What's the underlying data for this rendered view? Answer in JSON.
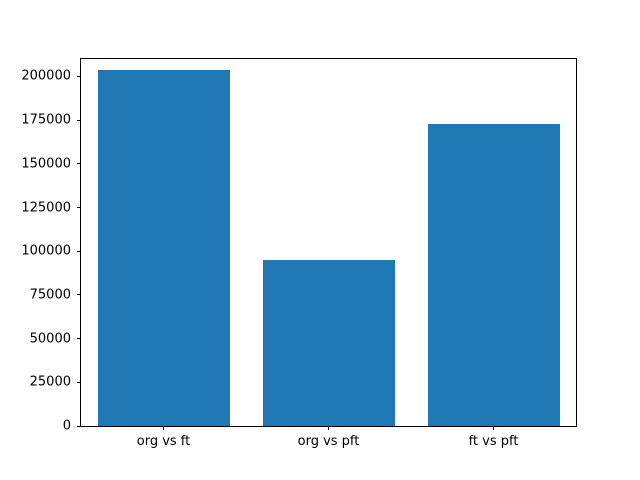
{
  "chart_data": {
    "type": "bar",
    "title": "",
    "xlabel": "",
    "ylabel": "",
    "categories": [
      "org vs ft",
      "org vs pft",
      "ft vs pft"
    ],
    "values": [
      204000,
      95000,
      173000
    ],
    "yticks": [
      0,
      25000,
      50000,
      75000,
      100000,
      125000,
      150000,
      175000,
      200000
    ],
    "ylim": [
      0,
      210000
    ],
    "bar_color": "#1f77b4",
    "grid": false,
    "legend": false,
    "background_color": "#ffffff"
  }
}
